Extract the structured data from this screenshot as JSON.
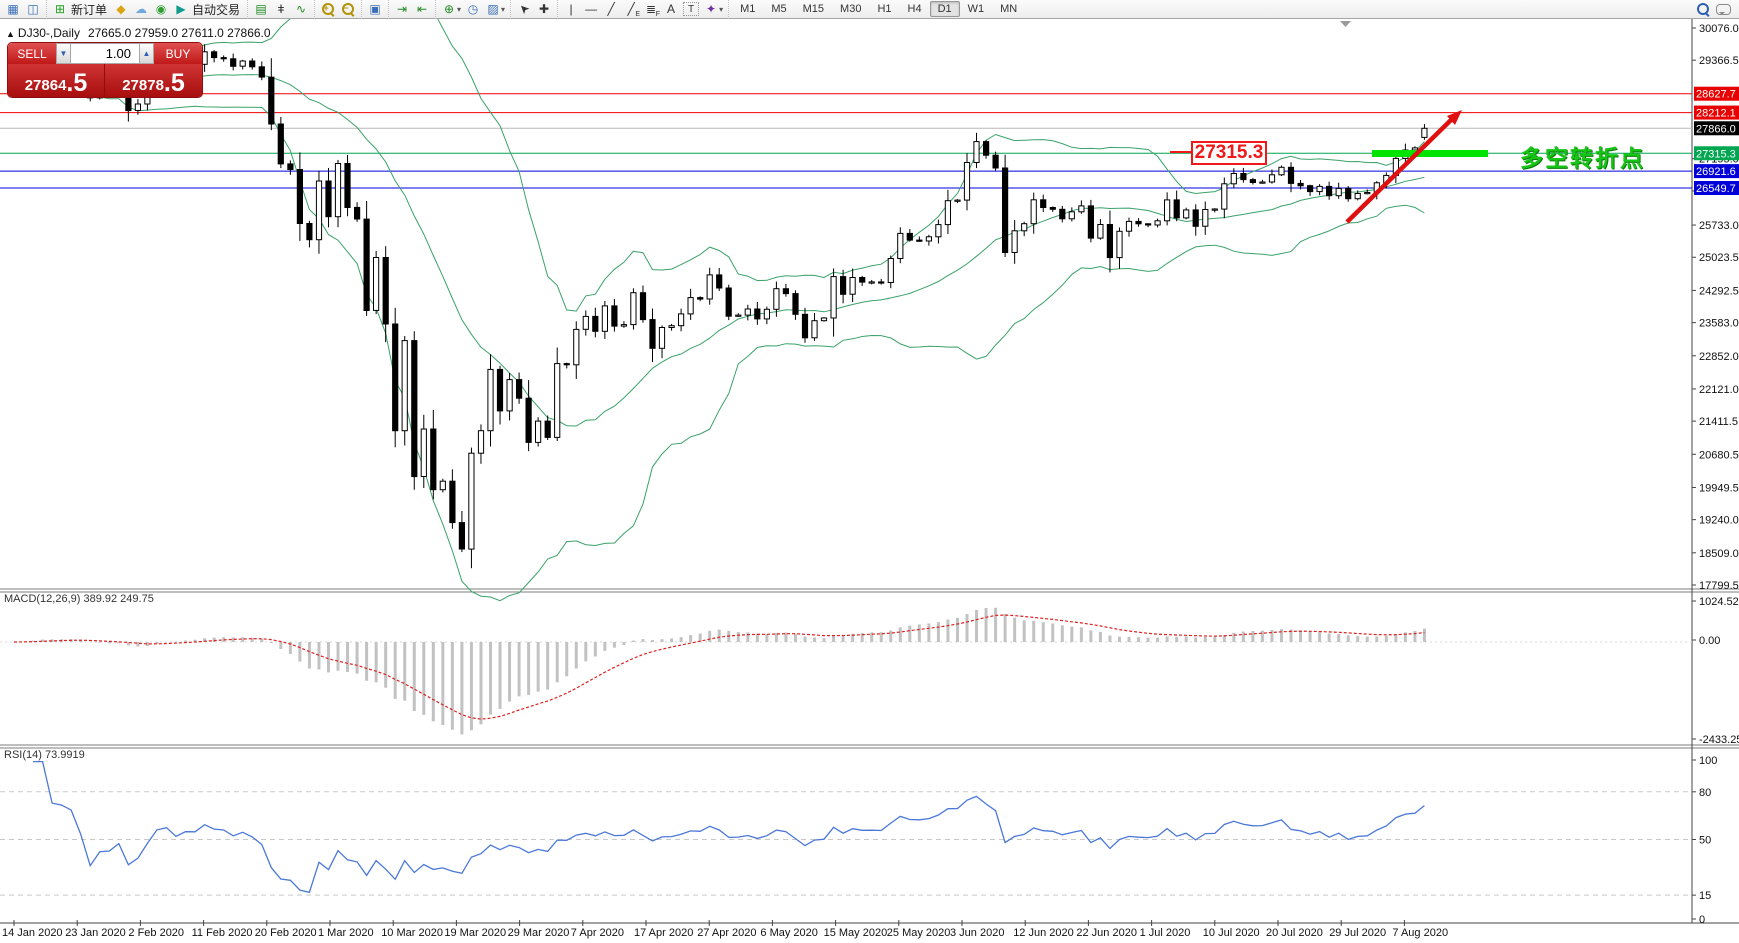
{
  "toolbar": {
    "groups": [
      {
        "icons": [
          {
            "name": "new-chart-icon",
            "glyph": "▦",
            "color": "#3b6fb5"
          },
          {
            "name": "chart-profiles-icon",
            "glyph": "◫",
            "color": "#3b6fb5"
          }
        ]
      },
      {
        "icons": [
          {
            "name": "new-order-icon",
            "glyph": "⊞",
            "color": "#1f9e1f",
            "label": "新订单"
          },
          {
            "name": "history-center-icon",
            "glyph": "◆",
            "color": "#dba613"
          },
          {
            "name": "market-watch-icon",
            "glyph": "☁",
            "color": "#6fa8dc"
          },
          {
            "name": "signals-icon",
            "glyph": "◉",
            "color": "#2f9e2f"
          },
          {
            "name": "autotrading-icon",
            "glyph": "▶",
            "color": "#0f9b8e",
            "label": "自动交易"
          }
        ]
      },
      {
        "icons": [
          {
            "name": "bar-chart-icon",
            "glyph": "▤",
            "color": "#1f8a1f"
          },
          {
            "name": "candlestick-chart-icon",
            "glyph": "ǂ",
            "color": "#222222"
          },
          {
            "name": "line-chart-icon",
            "glyph": "∿",
            "color": "#1f8a1f"
          }
        ]
      },
      {
        "icons": [
          {
            "name": "zoom-in-icon",
            "glyph": "mag+",
            "color": "#b29207"
          },
          {
            "name": "zoom-out-icon",
            "glyph": "mag-",
            "color": "#b29207"
          }
        ]
      },
      {
        "icons": [
          {
            "name": "tile-windows-icon",
            "glyph": "▣",
            "color": "#3b6fb5"
          }
        ]
      },
      {
        "icons": [
          {
            "name": "auto-scroll-icon",
            "glyph": "⇥",
            "color": "#1f8a1f"
          },
          {
            "name": "chart-shift-icon",
            "glyph": "⇤",
            "color": "#1f8a1f"
          }
        ]
      },
      {
        "icons": [
          {
            "name": "indicators-icon",
            "glyph": "⊕",
            "color": "#1f8a1f",
            "dropdown": true
          },
          {
            "name": "periods-icon",
            "glyph": "◷",
            "color": "#3b6fb5"
          },
          {
            "name": "templates-icon",
            "glyph": "▨",
            "color": "#3b6fb5",
            "dropdown": true
          }
        ]
      },
      {
        "icons": [
          {
            "name": "cursor-icon",
            "glyph": "➤",
            "color": "#333333",
            "rot": true
          },
          {
            "name": "crosshair-icon",
            "glyph": "✚",
            "color": "#333333"
          }
        ]
      },
      {
        "icons": [
          {
            "name": "vertical-line-icon",
            "glyph": "|",
            "color": "#333333"
          },
          {
            "name": "horizontal-line-icon",
            "glyph": "—",
            "color": "#333333"
          },
          {
            "name": "trendline-icon",
            "glyph": "╱",
            "color": "#333333"
          },
          {
            "name": "equidistant-channel-icon",
            "glyph": "╱",
            "sub": "E",
            "color": "#333333"
          },
          {
            "name": "fibonacci-icon",
            "glyph": "≣",
            "sub": "F",
            "color": "#333333"
          },
          {
            "name": "text-icon",
            "glyph": "A",
            "color": "#333333"
          },
          {
            "name": "text-label-icon",
            "glyph": "T",
            "color": "#333333",
            "boxed": true
          },
          {
            "name": "shapes-icon",
            "glyph": "✦",
            "color": "#7030a0",
            "dropdown": true
          }
        ]
      }
    ],
    "timeframes": [
      "M1",
      "M5",
      "M15",
      "M30",
      "H1",
      "H4",
      "D1",
      "W1",
      "MN"
    ],
    "active_timeframe": "D1",
    "right_icons": [
      {
        "name": "search-icon",
        "glyph": "mag",
        "color": "#2f5fb3"
      },
      {
        "name": "chat-icon",
        "glyph": "bubble",
        "color": "#8a8a8a"
      }
    ]
  },
  "chart": {
    "title_symbol": "DJ30-,Daily",
    "title_ohlc": "27665.0 27959.0 27611.0 27866.0",
    "collapse_marker": "▲"
  },
  "trade_panel": {
    "sell_label": "SELL",
    "buy_label": "BUY",
    "volume": "1.00",
    "sell_head": "27864",
    "sell_big": ".5",
    "buy_head": "27878",
    "buy_big": ".5"
  },
  "annotations": {
    "price_flag": "27315.3",
    "cn_text": "多空转折点"
  },
  "indicators": {
    "macd_label": "MACD(12,26,9) 389.92 249.75",
    "rsi_label": "RSI(14) 73.9919",
    "macd_axis": [
      1024.52,
      0.0,
      -2433.25
    ],
    "rsi_axis": [
      100,
      80,
      50,
      15,
      0
    ],
    "rsi_levels": [
      80,
      50,
      15
    ]
  },
  "chart_data": {
    "type": "candlestick",
    "symbol": "DJ30-",
    "timeframe": "Daily",
    "ohlc_current": {
      "open": 27665.0,
      "high": 27959.0,
      "low": 27611.0,
      "close": 27866.0
    },
    "current_price": 27866.0,
    "closes": [
      28939,
      29030,
      29297,
      29348,
      29196,
      29186,
      29160,
      28990,
      28536,
      28723,
      28734,
      28859,
      28256,
      28400,
      28808,
      29290,
      29380,
      29103,
      29277,
      29276,
      29551,
      29423,
      29398,
      29233,
      29348,
      29220,
      28992,
      27961,
      27081,
      26958,
      25767,
      25409,
      26703,
      25917,
      27090,
      26121,
      25865,
      23851,
      25018,
      23553,
      21201,
      23186,
      20189,
      21237,
      19899,
      20087,
      19174,
      18592,
      20705,
      21200,
      22552,
      21637,
      22327,
      21917,
      20943,
      21413,
      21053,
      22680,
      22654,
      23434,
      23719,
      23391,
      23950,
      23504,
      23538,
      24242,
      23650,
      23018,
      23476,
      23515,
      23775,
      24134,
      24102,
      24634,
      24346,
      23724,
      23749,
      23883,
      23665,
      23876,
      24331,
      24222,
      23765,
      23248,
      23625,
      23685,
      24597,
      24207,
      24576,
      24474,
      24480,
      24465,
      24995,
      25548,
      25401,
      25383,
      25475,
      25743,
      26270,
      26282,
      27111,
      27572,
      27272,
      26990,
      25128,
      25606,
      25763,
      26290,
      26120,
      26080,
      25871,
      26025,
      26156,
      25446,
      25746,
      25016,
      25596,
      25813,
      25760,
      25735,
      25827,
      26287,
      25890,
      26067,
      25706,
      26075,
      26086,
      26643,
      26870,
      26735,
      26672,
      26681,
      26840,
      27006,
      26652,
      26600,
      26470,
      26584,
      26379,
      26540,
      26313,
      26428,
      26450,
      26664,
      26828,
      27202,
      27387,
      27433,
      27866
    ],
    "bollinger": {
      "period": 20,
      "deviation": 2
    },
    "macd_params": [
      12,
      26,
      9
    ],
    "rsi_period": 14,
    "price_axis_ticks": [
      30076.0,
      29366.5,
      27195.0,
      26484.0,
      25733.0,
      25023.5,
      24292.5,
      23583.0,
      22852.0,
      22121.0,
      21411.5,
      20680.5,
      19949.5,
      19240.0,
      18509.0,
      17799.5
    ],
    "horizontal_levels": [
      {
        "price": 28627.7,
        "color": "#f00000",
        "label_bg": "#e80000"
      },
      {
        "price": 28212.1,
        "color": "#f00000",
        "label_bg": "#e80000"
      },
      {
        "price": 27315.3,
        "color": "#00a650",
        "label_bg": "#00a650"
      },
      {
        "price": 26921.6,
        "color": "#0000dd",
        "label_bg": "#0000d8"
      },
      {
        "price": 26549.7,
        "color": "#0000dd",
        "label_bg": "#0000d8"
      }
    ],
    "dates": [
      "14 Jan 2020",
      "23 Jan 2020",
      "2 Feb 2020",
      "11 Feb 2020",
      "20 Feb 2020",
      "1 Mar 2020",
      "10 Mar 2020",
      "19 Mar 2020",
      "29 Mar 2020",
      "7 Apr 2020",
      "17 Apr 2020",
      "27 Apr 2020",
      "6 May 2020",
      "15 May 2020",
      "25 May 2020",
      "3 Jun 2020",
      "12 Jun 2020",
      "22 Jun 2020",
      "1 Jul 2020",
      "10 Jul 2020",
      "20 Jul 2020",
      "29 Jul 2020",
      "7 Aug 2020"
    ]
  }
}
